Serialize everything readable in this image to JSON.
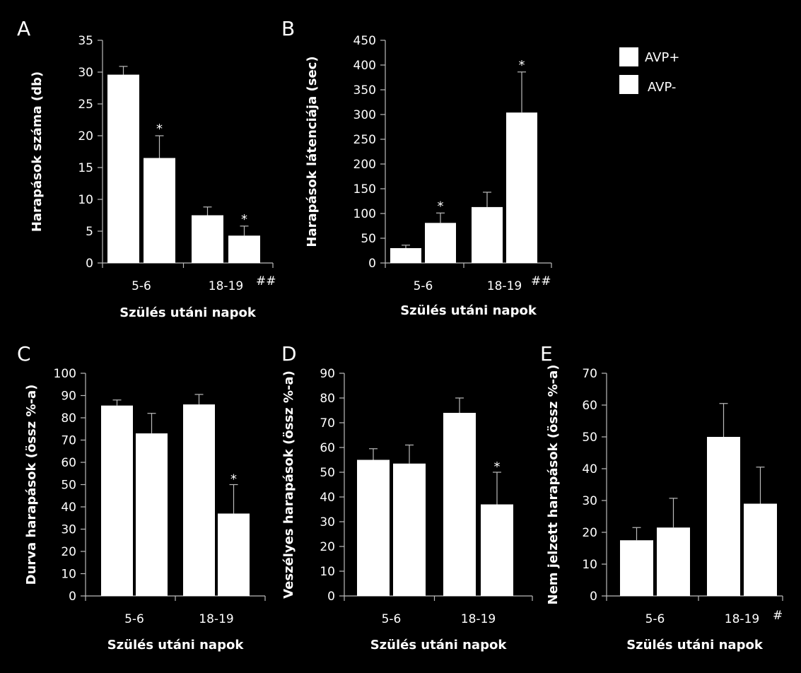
{
  "legend": {
    "placement": "top-right",
    "items": [
      {
        "label": "AVP+",
        "color": "#ffffff"
      },
      {
        "label": "AVP-",
        "color": "#ffffff"
      }
    ]
  },
  "chart_data": [
    {
      "type": "bar",
      "panel": "A",
      "categories": [
        "5-6",
        "18-19"
      ],
      "series": [
        {
          "name": "AVP+",
          "values": [
            29.6,
            7.5
          ],
          "errors": [
            1.3,
            1.3
          ]
        },
        {
          "name": "AVP-",
          "values": [
            16.5,
            4.3
          ],
          "errors": [
            3.5,
            1.5
          ]
        }
      ],
      "xlabel": "Szülés utáni napok",
      "ylabel": "Harapások száma (db)",
      "ylim": [
        0,
        35
      ],
      "yticks": [
        0,
        5,
        10,
        15,
        20,
        25,
        30,
        35
      ],
      "stars": [
        false,
        true,
        false,
        true
      ],
      "category_marks": [
        "",
        "##"
      ]
    },
    {
      "type": "bar",
      "panel": "B",
      "categories": [
        "5-6",
        "18-19"
      ],
      "series": [
        {
          "name": "AVP+",
          "values": [
            30,
            113
          ],
          "errors": [
            6,
            30
          ]
        },
        {
          "name": "AVP-",
          "values": [
            81,
            304
          ],
          "errors": [
            20,
            82
          ]
        }
      ],
      "xlabel": "Szülés utáni napok",
      "ylabel": "Harapások látenciája (sec)",
      "ylim": [
        0,
        450
      ],
      "yticks": [
        0,
        50,
        100,
        150,
        200,
        250,
        300,
        350,
        400,
        450
      ],
      "stars": [
        false,
        true,
        false,
        true
      ],
      "category_marks": [
        "",
        "##"
      ]
    },
    {
      "type": "bar",
      "panel": "C",
      "categories": [
        "5-6",
        "18-19"
      ],
      "series": [
        {
          "name": "AVP+",
          "values": [
            85.5,
            86
          ],
          "errors": [
            2.5,
            4.5
          ]
        },
        {
          "name": "AVP-",
          "values": [
            73,
            37
          ],
          "errors": [
            9,
            13
          ]
        }
      ],
      "xlabel": "Szülés utáni napok",
      "ylabel": "Durva harapások (össz  %-a)",
      "ylim": [
        0,
        100
      ],
      "yticks": [
        0,
        10,
        20,
        30,
        40,
        50,
        60,
        70,
        80,
        90,
        100
      ],
      "stars": [
        false,
        false,
        false,
        true
      ],
      "category_marks": [
        "",
        ""
      ]
    },
    {
      "type": "bar",
      "panel": "D",
      "categories": [
        "5-6",
        "18-19"
      ],
      "series": [
        {
          "name": "AVP+",
          "values": [
            55,
            74
          ],
          "errors": [
            4.5,
            6
          ]
        },
        {
          "name": "AVP-",
          "values": [
            53.5,
            37
          ],
          "errors": [
            7.5,
            13
          ]
        }
      ],
      "xlabel": "Szülés utáni napok",
      "ylabel": "Veszélyes harapások (össz %-a)",
      "ylim": [
        0,
        90
      ],
      "yticks": [
        0,
        10,
        20,
        30,
        40,
        50,
        60,
        70,
        80,
        90
      ],
      "stars": [
        false,
        false,
        false,
        true
      ],
      "category_marks": [
        "",
        ""
      ]
    },
    {
      "type": "bar",
      "panel": "E",
      "categories": [
        "5-6",
        "18-19"
      ],
      "series": [
        {
          "name": "AVP+",
          "values": [
            17.5,
            50
          ],
          "errors": [
            4,
            10.5
          ]
        },
        {
          "name": "AVP-",
          "values": [
            21.5,
            29
          ],
          "errors": [
            9.2,
            11.5
          ]
        }
      ],
      "xlabel": "Szülés utáni napok",
      "ylabel": "Nem jelzett  harapások (össz %-a)",
      "ylim": [
        0,
        70
      ],
      "yticks": [
        0,
        10,
        20,
        30,
        40,
        50,
        60,
        70
      ],
      "stars": [
        false,
        false,
        false,
        false
      ],
      "category_marks": [
        "",
        "#"
      ]
    }
  ]
}
